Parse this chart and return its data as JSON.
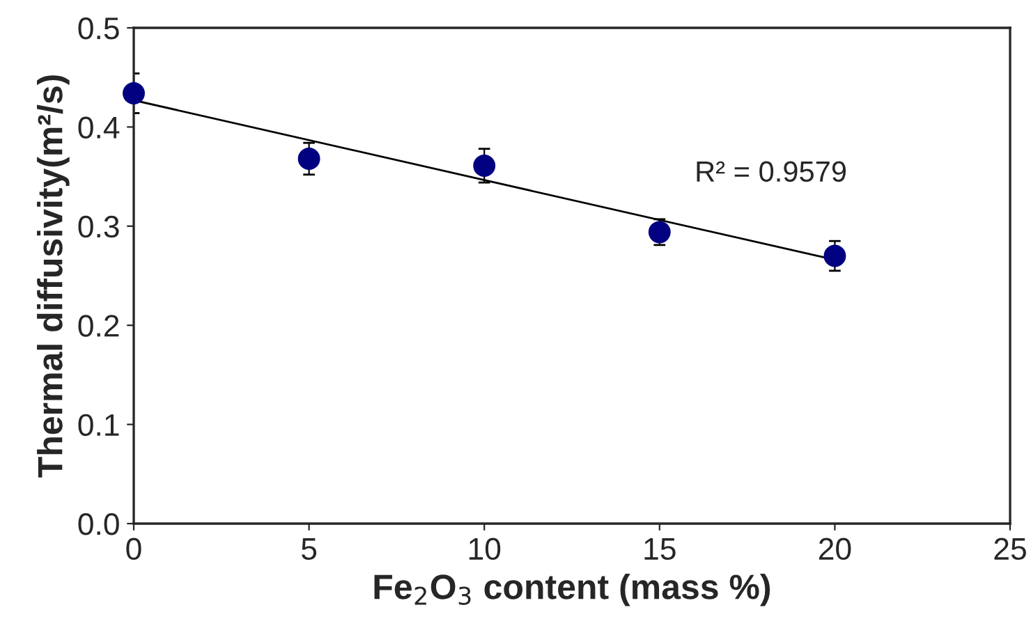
{
  "chart_data": {
    "type": "scatter",
    "xlabel": "Fe$_{2}$O$_{3}$ content (mass %)",
    "ylabel": "Thermal diffusivity(m²/s)",
    "x": [
      0,
      5,
      10,
      15,
      20
    ],
    "series": [
      {
        "color": "#000080",
        "values": [
          0.434,
          0.368,
          0.361,
          0.294,
          0.27
        ],
        "errors": [
          0.02,
          0.016,
          0.017,
          0.013,
          0.015
        ],
        "marker": "circle"
      },
      {
        "type": "line",
        "color": "#000000",
        "x": [
          0,
          20
        ],
        "values": [
          0.427,
          0.266
        ],
        "line_style": "solid"
      }
    ],
    "annotations": [
      "R² = 0.9579"
    ],
    "xlim": [
      0,
      25
    ],
    "xticks": [
      0,
      5,
      10,
      15,
      20,
      25
    ],
    "ylim": [
      0,
      0.5
    ],
    "yticks": [
      {
        "value": 0,
        "label": "0.0"
      },
      0.1,
      0.2,
      0.3,
      0.4,
      0.5
    ],
    "grid": false,
    "legend": false
  }
}
